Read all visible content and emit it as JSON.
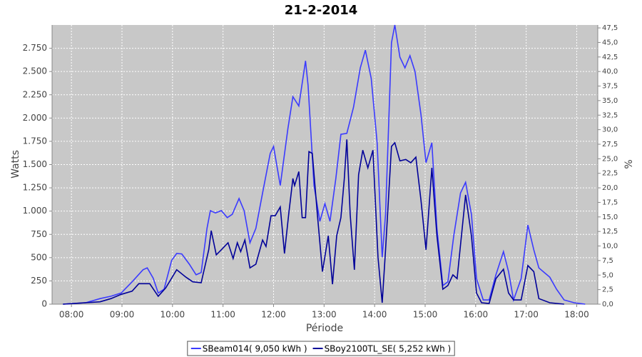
{
  "chart_data": {
    "type": "line",
    "title": "21-2-2014",
    "x_label": "Période",
    "y_label": "Watts",
    "y2_label": "%",
    "grid": true,
    "legend": "bottom",
    "xlim": [
      "07:37",
      "18:25"
    ],
    "xticks": [
      "08:00",
      "09:00",
      "10:00",
      "11:00",
      "12:00",
      "13:00",
      "14:00",
      "15:00",
      "16:00",
      "17:00",
      "18:00"
    ],
    "ylim": [
      0,
      3000
    ],
    "yticks": [
      0,
      250,
      500,
      750,
      {
        "value": 1000,
        "label": "1.000"
      },
      {
        "value": 1250,
        "label": "1.250"
      },
      {
        "value": 1500,
        "label": "1.500"
      },
      {
        "value": 1750,
        "label": "1.750"
      },
      {
        "value": 2000,
        "label": "2.000"
      },
      {
        "value": 2250,
        "label": "2.250"
      },
      {
        "value": 2500,
        "label": "2.500"
      },
      {
        "value": 2750,
        "label": "2.750"
      }
    ],
    "y2lim": [
      0,
      48
    ],
    "y2ticks": [
      {
        "value": 0,
        "label": "0,0"
      },
      {
        "value": 2.5,
        "label": "2,5"
      },
      {
        "value": 5,
        "label": "5,0"
      },
      {
        "value": 7.5,
        "label": "7,5"
      },
      {
        "value": 10,
        "label": "10,0"
      },
      {
        "value": 12.5,
        "label": "12,5"
      },
      {
        "value": 15,
        "label": "15,0"
      },
      {
        "value": 17.5,
        "label": "17,5"
      },
      {
        "value": 20,
        "label": "20,0"
      },
      {
        "value": 22.5,
        "label": "22,5"
      },
      {
        "value": 25,
        "label": "25,0"
      },
      {
        "value": 27.5,
        "label": "27,5"
      },
      {
        "value": 30,
        "label": "30,0"
      },
      {
        "value": 32.5,
        "label": "32,5"
      },
      {
        "value": 35,
        "label": "35,0"
      },
      {
        "value": 37.5,
        "label": "37,5"
      },
      {
        "value": 40,
        "label": "40,0"
      },
      {
        "value": 42.5,
        "label": "42,5"
      },
      {
        "value": 45,
        "label": "45,0"
      },
      {
        "value": 47.5,
        "label": "47,5"
      }
    ],
    "series": [
      {
        "name": "SBeam014( 9,050 kWh )",
        "color": "#3a3aff",
        "x": [
          "07:50",
          "08:17",
          "08:34",
          "08:47",
          "08:59",
          "09:12",
          "09:25",
          "09:30",
          "09:37",
          "09:43",
          "09:50",
          "09:59",
          "10:05",
          "10:11",
          "10:20",
          "10:28",
          "10:34",
          "10:41",
          "10:45",
          "10:51",
          "10:58",
          "11:05",
          "11:11",
          "11:19",
          "11:25",
          "11:32",
          "11:39",
          "11:47",
          "11:56",
          "12:00",
          "12:08",
          "12:17",
          "12:23",
          "12:30",
          "12:38",
          "12:41",
          "12:48",
          "12:55",
          "13:01",
          "13:07",
          "13:14",
          "13:20",
          "13:27",
          "13:35",
          "13:43",
          "13:49",
          "13:56",
          "14:03",
          "14:09",
          "14:13",
          "14:20",
          "14:24",
          "14:30",
          "14:36",
          "14:42",
          "14:48",
          "14:55",
          "15:01",
          "15:08",
          "15:14",
          "15:21",
          "15:27",
          "15:34",
          "15:42",
          "15:48",
          "15:55",
          "16:01",
          "16:09",
          "16:16",
          "16:24",
          "16:33",
          "16:39",
          "16:45",
          "16:54",
          "17:02",
          "17:09",
          "17:15",
          "17:28",
          "17:36",
          "17:45",
          "17:57",
          "18:10"
        ],
        "values": [
          0,
          15,
          60,
          85,
          120,
          240,
          370,
          390,
          280,
          120,
          160,
          470,
          545,
          540,
          430,
          315,
          340,
          815,
          1005,
          980,
          1005,
          930,
          965,
          1135,
          1005,
          660,
          815,
          1195,
          1620,
          1695,
          1275,
          1887,
          2230,
          2130,
          2615,
          2350,
          1275,
          890,
          1080,
          890,
          1350,
          1825,
          1835,
          2117,
          2540,
          2730,
          2425,
          1735,
          505,
          965,
          2810,
          3000,
          2655,
          2540,
          2670,
          2500,
          2040,
          1520,
          1735,
          815,
          200,
          240,
          735,
          1195,
          1310,
          965,
          275,
          45,
          45,
          315,
          565,
          350,
          45,
          275,
          850,
          585,
          390,
          290,
          160,
          45,
          15,
          0
        ]
      },
      {
        "name": "SBoy2100TL_SE( 5,252 kWh )",
        "color": "#000099",
        "x": [
          "07:50",
          "08:34",
          "08:47",
          "08:59",
          "09:12",
          "09:20",
          "09:33",
          "09:43",
          "09:52",
          "10:05",
          "10:16",
          "10:24",
          "10:34",
          "10:43",
          "10:46",
          "10:52",
          "10:58",
          "11:06",
          "11:12",
          "11:17",
          "11:21",
          "11:26",
          "11:32",
          "11:39",
          "11:47",
          "11:51",
          "11:57",
          "12:02",
          "12:08",
          "12:13",
          "12:18",
          "12:23",
          "12:25",
          "12:30",
          "12:34",
          "12:38",
          "12:42",
          "12:46",
          "12:52",
          "12:58",
          "13:05",
          "13:10",
          "13:15",
          "13:20",
          "13:24",
          "13:27",
          "13:31",
          "13:36",
          "13:41",
          "13:46",
          "13:52",
          "13:58",
          "14:04",
          "14:09",
          "14:13",
          "14:20",
          "14:24",
          "14:30",
          "14:37",
          "14:43",
          "14:49",
          "14:55",
          "15:01",
          "15:08",
          "15:14",
          "15:21",
          "15:27",
          "15:33",
          "15:38",
          "15:48",
          "15:55",
          "16:01",
          "16:07",
          "16:16",
          "16:24",
          "16:33",
          "16:39",
          "16:45",
          "16:54",
          "17:02",
          "17:09",
          "17:15",
          "17:28",
          "17:45"
        ],
        "values": [
          0,
          25,
          60,
          105,
          140,
          220,
          220,
          85,
          175,
          370,
          290,
          240,
          230,
          585,
          790,
          530,
          585,
          660,
          490,
          660,
          565,
          690,
          390,
          430,
          690,
          620,
          950,
          950,
          1045,
          545,
          965,
          1350,
          1275,
          1425,
          930,
          930,
          1640,
          1620,
          965,
          350,
          735,
          215,
          735,
          930,
          1350,
          1770,
          965,
          370,
          1390,
          1655,
          1465,
          1655,
          505,
          15,
          585,
          1695,
          1735,
          1540,
          1555,
          1520,
          1580,
          1120,
          585,
          1465,
          735,
          160,
          200,
          315,
          275,
          1175,
          735,
          120,
          15,
          8,
          275,
          375,
          120,
          45,
          45,
          415,
          350,
          60,
          15,
          0
        ]
      }
    ]
  }
}
